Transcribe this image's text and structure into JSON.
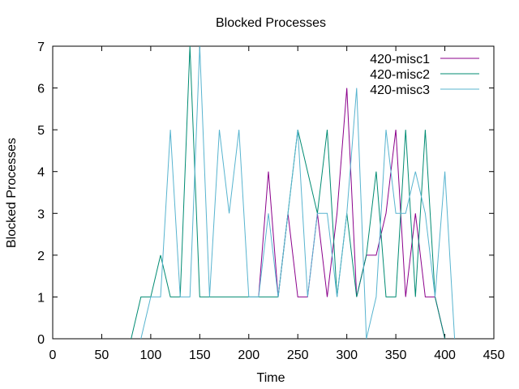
{
  "chart_data": {
    "type": "line",
    "title": "Blocked Processes",
    "xlabel": "Time",
    "ylabel": "Blocked Processes",
    "xlim": [
      0,
      450
    ],
    "ylim": [
      0,
      7
    ],
    "xticks": [
      0,
      50,
      100,
      150,
      200,
      250,
      300,
      350,
      400,
      450
    ],
    "yticks": [
      0,
      1,
      2,
      3,
      4,
      5,
      6,
      7
    ],
    "grid": false,
    "legend_position": "top-right",
    "series": [
      {
        "name": "420-misc1",
        "color": "#8b008b",
        "points": [
          [
            210,
            1
          ],
          [
            220,
            4
          ],
          [
            230,
            1
          ],
          [
            240,
            3
          ],
          [
            250,
            1
          ],
          [
            260,
            1
          ],
          [
            270,
            3
          ],
          [
            280,
            1
          ],
          [
            290,
            3
          ],
          [
            300,
            6
          ],
          [
            310,
            1
          ],
          [
            320,
            2
          ],
          [
            330,
            2
          ],
          [
            340,
            3
          ],
          [
            350,
            5
          ],
          [
            360,
            1
          ],
          [
            370,
            3
          ],
          [
            380,
            1
          ],
          [
            390,
            1
          ],
          [
            400,
            0
          ]
        ]
      },
      {
        "name": "420-misc2",
        "color": "#008b72",
        "points": [
          [
            80,
            0
          ],
          [
            90,
            1
          ],
          [
            100,
            1
          ],
          [
            110,
            2
          ],
          [
            120,
            1
          ],
          [
            130,
            1
          ],
          [
            140,
            7
          ],
          [
            150,
            1
          ],
          [
            160,
            1
          ],
          [
            170,
            1
          ],
          [
            180,
            1
          ],
          [
            190,
            1
          ],
          [
            200,
            1
          ],
          [
            210,
            1
          ],
          [
            220,
            1
          ],
          [
            230,
            1
          ],
          [
            240,
            3
          ],
          [
            250,
            5
          ],
          [
            260,
            4
          ],
          [
            270,
            3
          ],
          [
            280,
            5
          ],
          [
            290,
            1
          ],
          [
            300,
            3
          ],
          [
            310,
            1
          ],
          [
            320,
            2
          ],
          [
            330,
            4
          ],
          [
            340,
            1
          ],
          [
            350,
            1
          ],
          [
            360,
            5
          ],
          [
            370,
            1
          ],
          [
            380,
            5
          ],
          [
            390,
            1
          ],
          [
            400,
            0
          ]
        ]
      },
      {
        "name": "420-misc3",
        "color": "#58b4cf",
        "points": [
          [
            90,
            0
          ],
          [
            100,
            1
          ],
          [
            110,
            1
          ],
          [
            120,
            5
          ],
          [
            130,
            1
          ],
          [
            140,
            1
          ],
          [
            150,
            7
          ],
          [
            160,
            1
          ],
          [
            170,
            5
          ],
          [
            180,
            3
          ],
          [
            190,
            5
          ],
          [
            200,
            1
          ],
          [
            210,
            1
          ],
          [
            220,
            3
          ],
          [
            230,
            1
          ],
          [
            240,
            3
          ],
          [
            250,
            5
          ],
          [
            260,
            1
          ],
          [
            270,
            3
          ],
          [
            280,
            3
          ],
          [
            290,
            1
          ],
          [
            300,
            3
          ],
          [
            310,
            6
          ],
          [
            320,
            0
          ],
          [
            330,
            1
          ],
          [
            340,
            5
          ],
          [
            350,
            3
          ],
          [
            360,
            3
          ],
          [
            370,
            4
          ],
          [
            380,
            3
          ],
          [
            390,
            1
          ],
          [
            400,
            4
          ],
          [
            410,
            0
          ]
        ]
      }
    ]
  }
}
